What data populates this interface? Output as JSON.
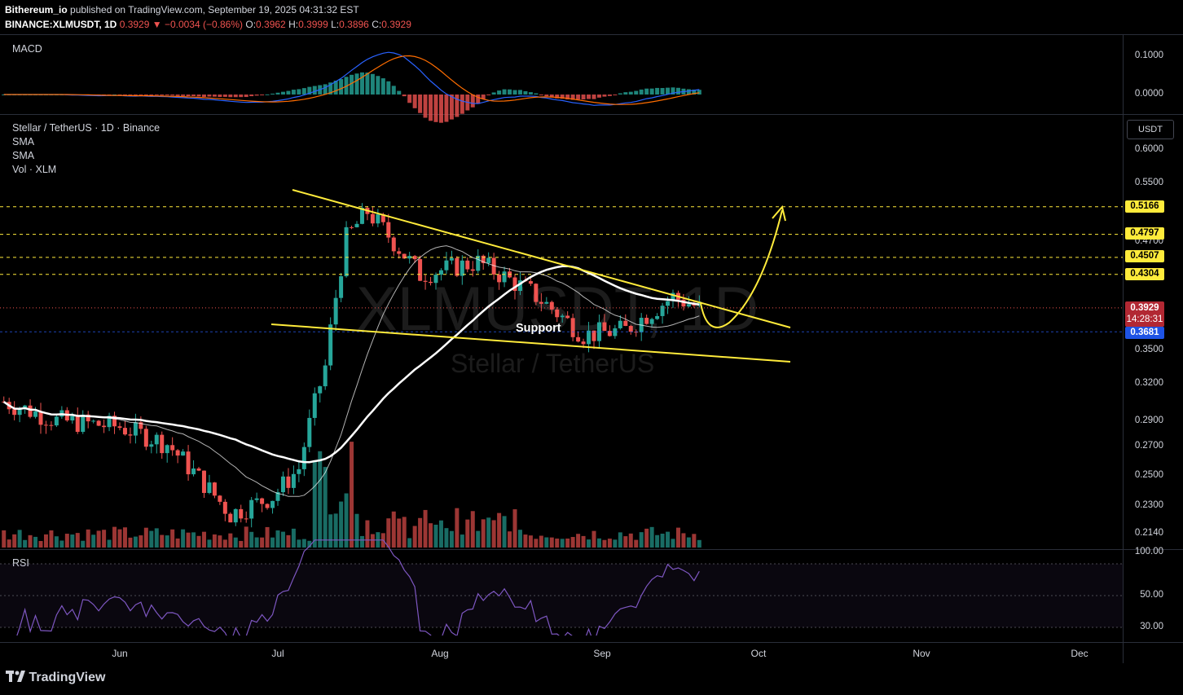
{
  "header": {
    "author": "Bithereum_io",
    "published": "published on TradingView.com, September 19, 2025 04:31:32 EST",
    "symbol": "BINANCE:XLMUSDT, 1D",
    "last": "0.3929",
    "change": "▼ −0.0034 (−0.86%)",
    "o_label": "O:",
    "o": "0.3962",
    "h_label": "H:",
    "h": "0.3999",
    "l_label": "L:",
    "l": "0.3896",
    "c_label": "C:",
    "c": "0.3929"
  },
  "panes": {
    "macd_label": "MACD",
    "macd_ticks": [
      "0.1000",
      "0.0000"
    ],
    "main_title": "Stellar / TetherUS · 1D · Binance",
    "indicators": [
      "SMA",
      "SMA",
      "Vol · XLM"
    ],
    "rsi_label": "RSI",
    "rsi_ticks": [
      "100.00",
      "50.00",
      "30.00"
    ]
  },
  "price_axis": {
    "unit": "USDT",
    "ticks": [
      "0.6000",
      "0.5500",
      "0.4700",
      "0.3500",
      "0.3200",
      "0.2900",
      "0.2700",
      "0.2500",
      "0.2300",
      "0.2140"
    ],
    "levels": [
      "0.5166",
      "0.4797",
      "0.4507",
      "0.4304"
    ],
    "current": "0.3929",
    "countdown": "14:28:31",
    "support_price": "0.3681"
  },
  "time_axis": [
    "Jun",
    "Jul",
    "Aug",
    "Sep",
    "Oct",
    "Nov",
    "Dec"
  ],
  "annotations": {
    "support": "Support",
    "watermark_symbol": "XLMUSDT, 1D",
    "watermark_name": "Stellar / TetherUS"
  },
  "footer": {
    "brand": "TradingView"
  },
  "colors": {
    "up": "#26a69a",
    "down": "#ef5350",
    "lines": "#ffeb3b",
    "sma": "#ffffff",
    "macd": "#2962ff",
    "signal": "#ff6d00",
    "rsi": "#7e57c2"
  },
  "chart_data": {
    "type": "line",
    "resistance_levels": [
      0.5166,
      0.4797,
      0.4507,
      0.4304
    ],
    "support_level": 0.3681,
    "last_close": 0.3929,
    "close_path": [
      {
        "x": "2025-05-10",
        "y": 0.305
      },
      {
        "x": "2025-05-20",
        "y": 0.29
      },
      {
        "x": "2025-06-01",
        "y": 0.285
      },
      {
        "x": "2025-06-10",
        "y": 0.272
      },
      {
        "x": "2025-06-22",
        "y": 0.225
      },
      {
        "x": "2025-06-30",
        "y": 0.236
      },
      {
        "x": "2025-07-05",
        "y": 0.255
      },
      {
        "x": "2025-07-10",
        "y": 0.335
      },
      {
        "x": "2025-07-14",
        "y": 0.475
      },
      {
        "x": "2025-07-18",
        "y": 0.51
      },
      {
        "x": "2025-07-28",
        "y": 0.43
      },
      {
        "x": "2025-08-08",
        "y": 0.445
      },
      {
        "x": "2025-08-18",
        "y": 0.41
      },
      {
        "x": "2025-08-28",
        "y": 0.365
      },
      {
        "x": "2025-09-05",
        "y": 0.37
      },
      {
        "x": "2025-09-14",
        "y": 0.405
      },
      {
        "x": "2025-09-19",
        "y": 0.393
      }
    ]
  }
}
